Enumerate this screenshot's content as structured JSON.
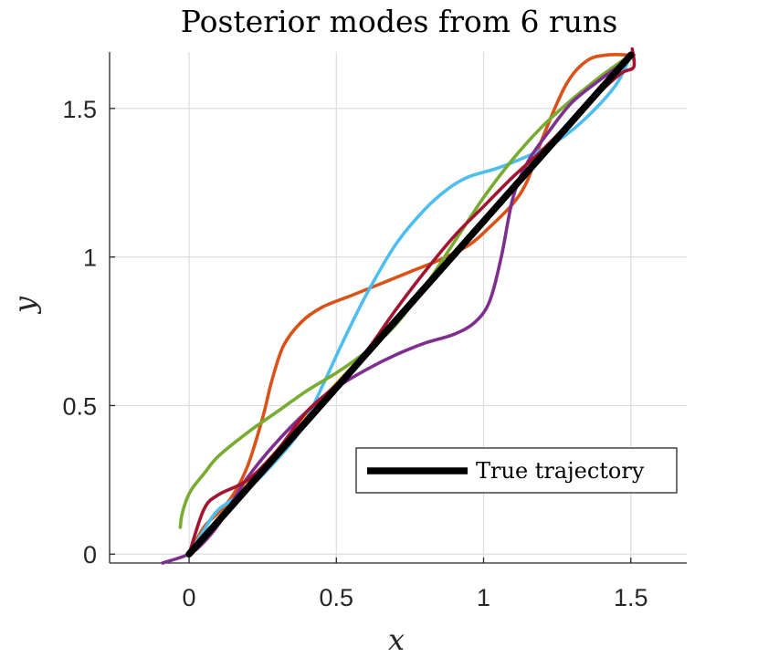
{
  "chart_data": {
    "type": "line",
    "title": "Posterior modes from 6 runs",
    "xlabel": "x",
    "ylabel": "y",
    "xlim": [
      -0.27,
      1.69
    ],
    "ylim": [
      -0.03,
      1.69
    ],
    "xticks": [
      0,
      0.5,
      1,
      1.5
    ],
    "xtick_labels": [
      "0",
      "0.5",
      "1",
      "1.5"
    ],
    "yticks": [
      0,
      0.5,
      1,
      1.5
    ],
    "ytick_labels": [
      "0",
      "0.5",
      "1",
      "1.5"
    ],
    "grid": true,
    "legend": {
      "placement": "lower-right",
      "entries": [
        "True trajectory"
      ]
    },
    "series": [
      {
        "color": "#EDB120",
        "points": [
          [
            0,
            0
          ],
          [
            0.15,
            0.18
          ],
          [
            0.3,
            0.35
          ],
          [
            0.45,
            0.52
          ],
          [
            0.6,
            0.68
          ],
          [
            0.75,
            0.84
          ],
          [
            0.9,
            1.0
          ],
          [
            1.05,
            1.17
          ],
          [
            1.2,
            1.35
          ],
          [
            1.35,
            1.52
          ],
          [
            1.5,
            1.68
          ]
        ]
      },
      {
        "color": "#D95319",
        "points": [
          [
            0,
            0
          ],
          [
            0.05,
            0.09
          ],
          [
            0.1,
            0.14
          ],
          [
            0.15,
            0.2
          ],
          [
            0.2,
            0.3
          ],
          [
            0.25,
            0.46
          ],
          [
            0.28,
            0.58
          ],
          [
            0.32,
            0.7
          ],
          [
            0.38,
            0.78
          ],
          [
            0.45,
            0.83
          ],
          [
            0.55,
            0.87
          ],
          [
            0.65,
            0.91
          ],
          [
            0.75,
            0.95
          ],
          [
            0.85,
            0.99
          ],
          [
            0.95,
            1.04
          ],
          [
            1.02,
            1.1
          ],
          [
            1.1,
            1.18
          ],
          [
            1.15,
            1.26
          ],
          [
            1.2,
            1.4
          ],
          [
            1.28,
            1.58
          ],
          [
            1.35,
            1.66
          ],
          [
            1.42,
            1.68
          ],
          [
            1.5,
            1.68
          ]
        ]
      },
      {
        "color": "#4DBEEE",
        "points": [
          [
            0,
            0
          ],
          [
            0.05,
            0.08
          ],
          [
            0.1,
            0.15
          ],
          [
            0.2,
            0.22
          ],
          [
            0.3,
            0.32
          ],
          [
            0.38,
            0.42
          ],
          [
            0.45,
            0.56
          ],
          [
            0.52,
            0.71
          ],
          [
            0.6,
            0.87
          ],
          [
            0.7,
            1.04
          ],
          [
            0.8,
            1.16
          ],
          [
            0.88,
            1.23
          ],
          [
            0.95,
            1.27
          ],
          [
            1.05,
            1.3
          ],
          [
            1.15,
            1.34
          ],
          [
            1.25,
            1.39
          ],
          [
            1.35,
            1.47
          ],
          [
            1.45,
            1.58
          ],
          [
            1.5,
            1.68
          ]
        ]
      },
      {
        "color": "#77AC30",
        "points": [
          [
            -0.03,
            0.09
          ],
          [
            -0.025,
            0.13
          ],
          [
            -0.01,
            0.18
          ],
          [
            0.01,
            0.22
          ],
          [
            0.05,
            0.27
          ],
          [
            0.1,
            0.33
          ],
          [
            0.2,
            0.41
          ],
          [
            0.3,
            0.48
          ],
          [
            0.4,
            0.55
          ],
          [
            0.5,
            0.61
          ],
          [
            0.6,
            0.68
          ],
          [
            0.7,
            0.77
          ],
          [
            0.8,
            0.9
          ],
          [
            0.9,
            1.05
          ],
          [
            1.0,
            1.2
          ],
          [
            1.1,
            1.33
          ],
          [
            1.2,
            1.44
          ],
          [
            1.3,
            1.53
          ],
          [
            1.4,
            1.61
          ],
          [
            1.5,
            1.68
          ]
        ]
      },
      {
        "color": "#7E2F8E",
        "points": [
          [
            -0.09,
            -0.03
          ],
          [
            0,
            0
          ],
          [
            0.05,
            0.04
          ],
          [
            0.1,
            0.1
          ],
          [
            0.15,
            0.18
          ],
          [
            0.2,
            0.26
          ],
          [
            0.3,
            0.38
          ],
          [
            0.4,
            0.48
          ],
          [
            0.5,
            0.56
          ],
          [
            0.6,
            0.62
          ],
          [
            0.7,
            0.67
          ],
          [
            0.8,
            0.71
          ],
          [
            0.9,
            0.74
          ],
          [
            0.97,
            0.78
          ],
          [
            1.02,
            0.85
          ],
          [
            1.06,
            1.0
          ],
          [
            1.1,
            1.2
          ],
          [
            1.15,
            1.32
          ],
          [
            1.22,
            1.42
          ],
          [
            1.3,
            1.52
          ],
          [
            1.4,
            1.6
          ],
          [
            1.47,
            1.65
          ],
          [
            1.51,
            1.68
          ]
        ]
      },
      {
        "color": "#A2142F",
        "points": [
          [
            0,
            0
          ],
          [
            0.05,
            0.15
          ],
          [
            0.1,
            0.2
          ],
          [
            0.2,
            0.25
          ],
          [
            0.3,
            0.35
          ],
          [
            0.4,
            0.48
          ],
          [
            0.5,
            0.57
          ],
          [
            0.6,
            0.68
          ],
          [
            0.7,
            0.82
          ],
          [
            0.8,
            0.95
          ],
          [
            0.9,
            1.07
          ],
          [
            1.0,
            1.17
          ],
          [
            1.1,
            1.27
          ],
          [
            1.2,
            1.36
          ],
          [
            1.3,
            1.46
          ],
          [
            1.4,
            1.56
          ],
          [
            1.47,
            1.62
          ],
          [
            1.51,
            1.64
          ],
          [
            1.505,
            1.7
          ]
        ]
      },
      {
        "name": "True trajectory",
        "color": "#000000",
        "points": [
          [
            0,
            0
          ],
          [
            1.5,
            1.68
          ]
        ]
      }
    ]
  }
}
